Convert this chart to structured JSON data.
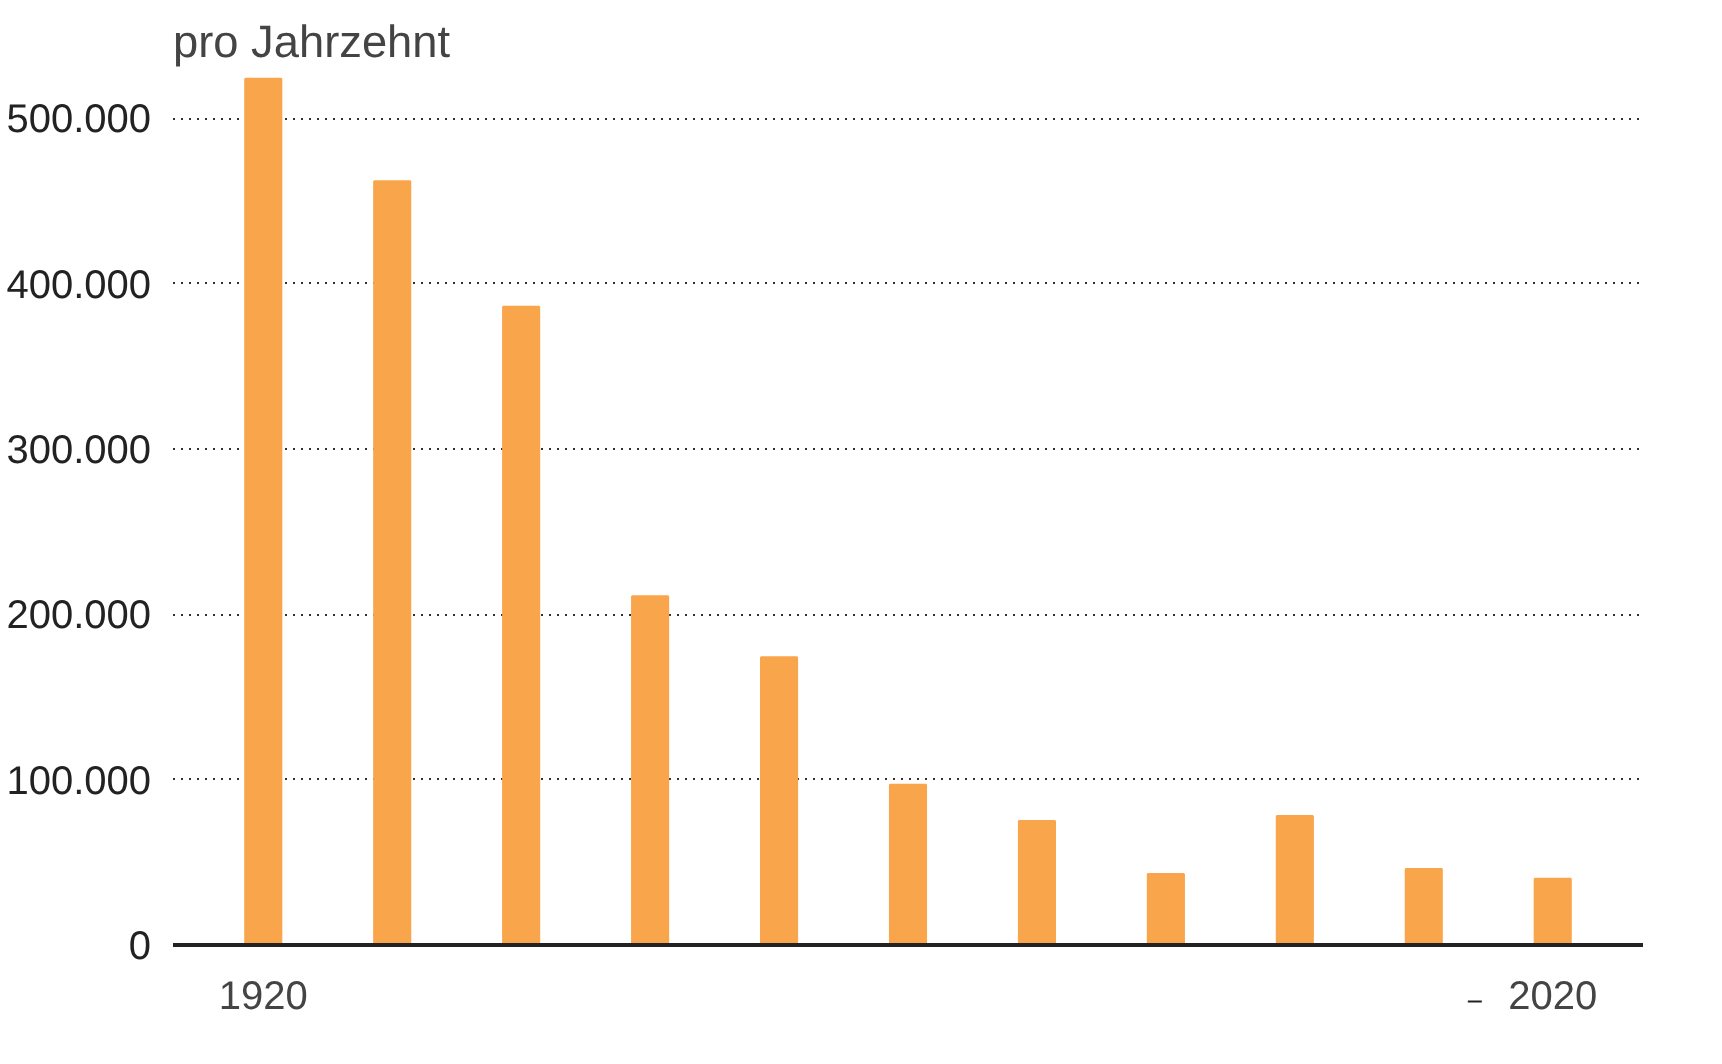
{
  "chart_data": {
    "type": "bar",
    "title": "pro Jahrzehnt",
    "categories": [
      "1920",
      null,
      null,
      null,
      null,
      null,
      null,
      null,
      null,
      null,
      "2020"
    ],
    "values": [
      524000,
      462000,
      386000,
      211000,
      174000,
      97000,
      75000,
      43000,
      78000,
      46000,
      40000
    ],
    "color": "#f9a54b",
    "ylim": [
      0,
      525000
    ],
    "yticks": [
      {
        "value": 0,
        "label": "0"
      },
      {
        "value": 100000,
        "label": "100.000"
      },
      {
        "value": 200000,
        "label": "200.000"
      },
      {
        "value": 300000,
        "label": "300.000"
      },
      {
        "value": 400000,
        "label": "400.000"
      },
      {
        "value": 500000,
        "label": "500.000"
      }
    ],
    "grid": "y"
  }
}
